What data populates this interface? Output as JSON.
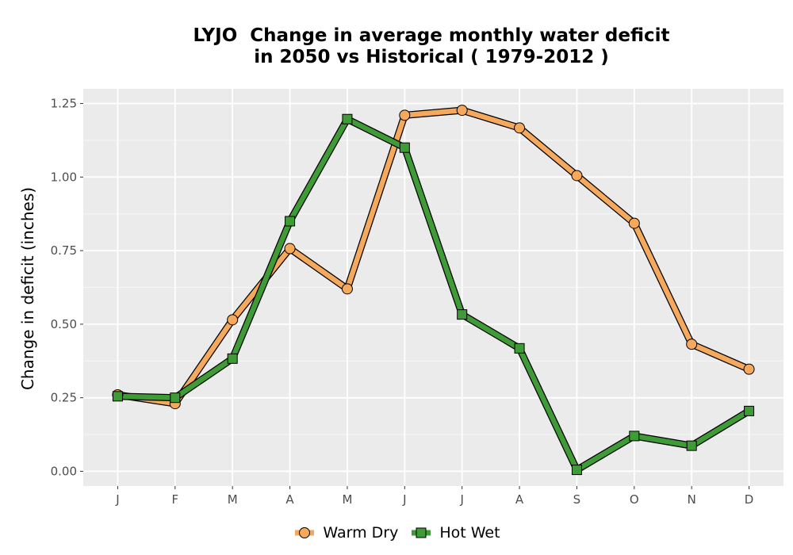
{
  "chart_data": {
    "type": "line",
    "title_line1": "LYJO  Change in average monthly water deficit",
    "title_line2": "in 2050 vs Historical ( 1979-2012 )",
    "xlabel": "",
    "ylabel": "Change in deficit (inches)",
    "categories": [
      "J",
      "F",
      "M",
      "A",
      "M",
      "J",
      "J",
      "A",
      "S",
      "O",
      "N",
      "D"
    ],
    "ylim": [
      -0.05,
      1.3
    ],
    "yticks": [
      0.0,
      0.25,
      0.5,
      0.75,
      1.0,
      1.25
    ],
    "ytick_labels": [
      "0.00",
      "0.25",
      "0.50",
      "0.75",
      "1.00",
      "1.25"
    ],
    "grid": true,
    "legend_position": "bottom",
    "series": [
      {
        "name": "Warm Dry",
        "color": "#F5A95C",
        "marker": "circle",
        "values": [
          0.26,
          0.23,
          0.515,
          0.757,
          0.62,
          1.21,
          1.227,
          1.167,
          1.005,
          0.843,
          0.432,
          0.347
        ]
      },
      {
        "name": "Hot Wet",
        "color": "#3E9B35",
        "marker": "square",
        "values": [
          0.255,
          0.25,
          0.383,
          0.85,
          1.197,
          1.1,
          0.533,
          0.418,
          0.005,
          0.12,
          0.087,
          0.205
        ]
      }
    ]
  }
}
